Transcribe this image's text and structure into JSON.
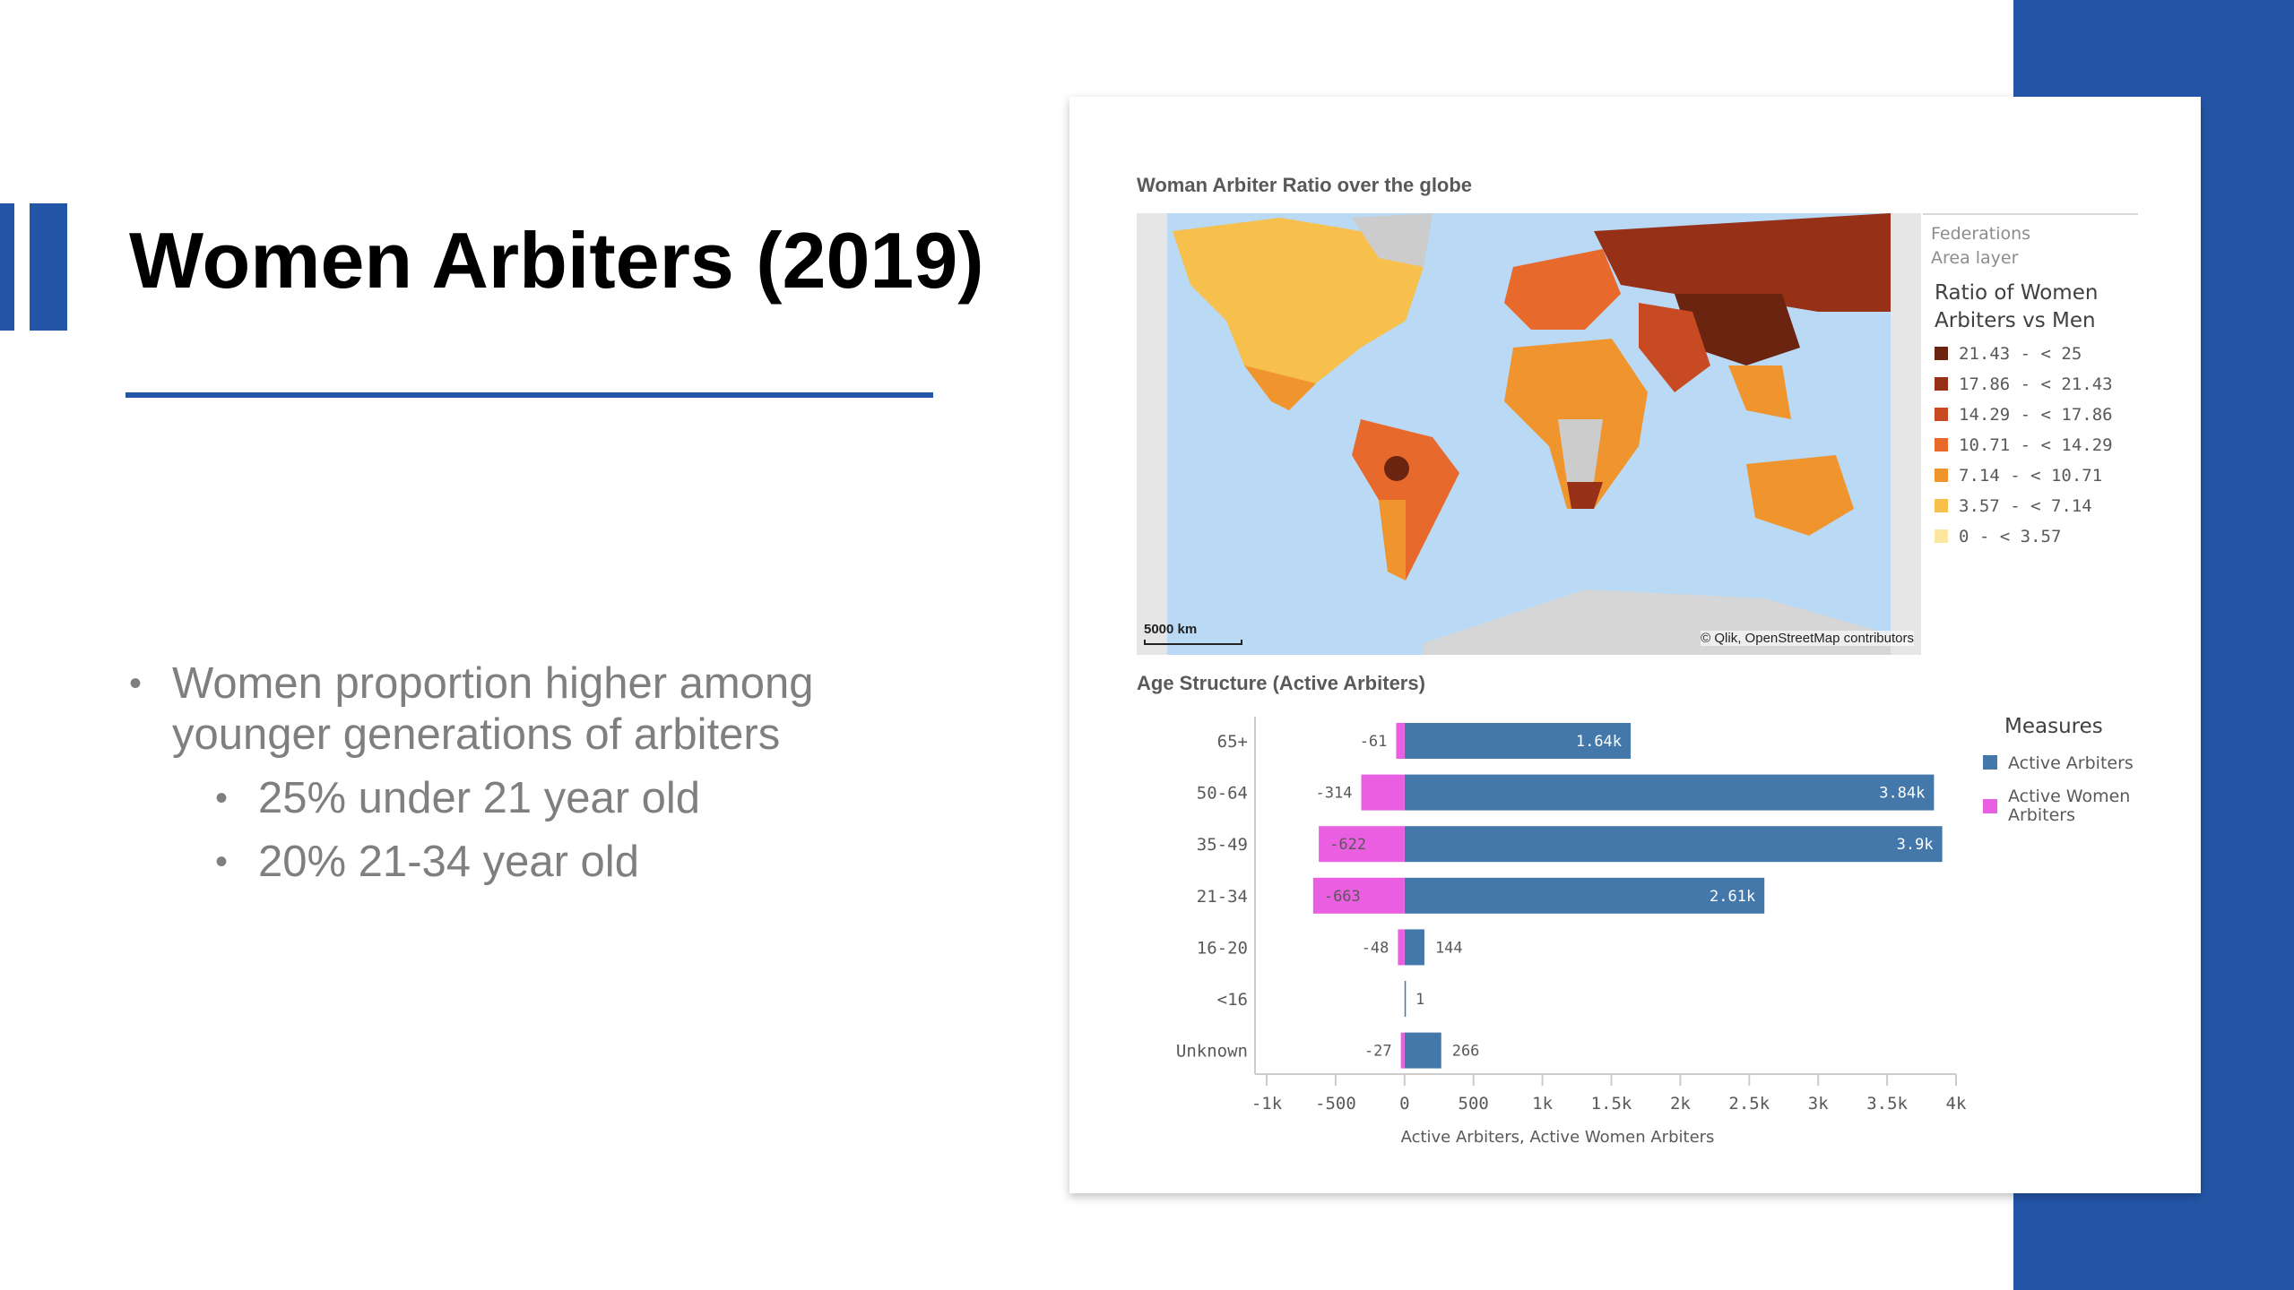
{
  "slide": {
    "title": "Women Arbiters (2019)",
    "bullets": [
      {
        "text": "Women proportion higher among younger generations of arbiters",
        "lines": [
          "Women proportion higher among",
          "younger generations of arbiters"
        ],
        "level": 1
      },
      {
        "text": "25% under 21 year old",
        "level": 2
      },
      {
        "text": "20% 21-34 year old",
        "level": 2
      }
    ]
  },
  "map": {
    "title": "Woman Arbiter Ratio over the globe",
    "scale": "5000 km",
    "attribution": "© Qlik, OpenStreetMap contributors",
    "legend": {
      "layer1": "Federations",
      "layer2": "Area layer",
      "title_line1": "Ratio of Women",
      "title_line2": "Arbiters vs Men",
      "items": [
        {
          "label": "21.43 - < 25",
          "color": "#6b2410"
        },
        {
          "label": "17.86 - < 21.43",
          "color": "#963016"
        },
        {
          "label": "14.29 - < 17.86",
          "color": "#c84a22"
        },
        {
          "label": "10.71 - < 14.29",
          "color": "#e8692c"
        },
        {
          "label": "7.14 - < 10.71",
          "color": "#f0952e"
        },
        {
          "label": "3.57 - < 7.14",
          "color": "#f7c04d"
        },
        {
          "label": "0 - < 3.57",
          "color": "#fde6a0"
        }
      ]
    }
  },
  "chart_data": {
    "type": "bar",
    "title": "Age Structure (Active Arbiters)",
    "categories": [
      "65+",
      "50-64",
      "35-49",
      "21-34",
      "16-20",
      "<16",
      "Unknown"
    ],
    "series": [
      {
        "name": "Active Arbiters",
        "color": "#4477aa",
        "values": [
          1640,
          3840,
          3900,
          2610,
          144,
          1,
          266
        ],
        "labels": [
          "1.64k",
          "3.84k",
          "3.9k",
          "2.61k",
          "144",
          "1",
          "266"
        ]
      },
      {
        "name": "Active Women Arbiters",
        "color": "#ea5fe1",
        "values": [
          -61,
          -314,
          -622,
          -663,
          -48,
          0,
          -27
        ],
        "labels": [
          "-61",
          "-314",
          "-622",
          "-663",
          "-48",
          "",
          "-27"
        ]
      }
    ],
    "xlim": [
      -1000,
      4000
    ],
    "xticks": [
      -1000,
      -500,
      0,
      500,
      1000,
      1500,
      2000,
      2500,
      3000,
      3500,
      4000
    ],
    "xtick_labels": [
      "-1k",
      "-500",
      "0",
      "500",
      "1k",
      "1.5k",
      "2k",
      "2.5k",
      "3k",
      "3.5k",
      "4k"
    ],
    "xlabel": "Active Arbiters, Active Women Arbiters",
    "legend_title": "Measures",
    "legend": "top-right"
  }
}
